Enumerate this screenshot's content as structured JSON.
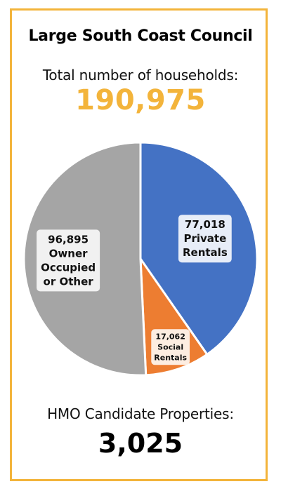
{
  "colors": {
    "frame": "#F3B43B",
    "total_value": "#F3B43B"
  },
  "title": "Large South Coast Council",
  "households": {
    "label": "Total number of households:",
    "value": "190,975"
  },
  "hmo": {
    "label": "HMO Candidate Properties:",
    "value": "3,025"
  },
  "chart_data": {
    "type": "pie",
    "total": 190975,
    "slices": [
      {
        "value": 77018,
        "value_label": "77,018",
        "name_lines": [
          "Private",
          "Rentals"
        ],
        "color": "#4472C4"
      },
      {
        "value": 17062,
        "value_label": "17,062",
        "name_lines": [
          "Social",
          "Rentals"
        ],
        "color": "#ED7D31"
      },
      {
        "value": 96895,
        "value_label": "96,895",
        "name_lines": [
          "Owner",
          "Occupied",
          "or Other"
        ],
        "color": "#A5A5A5"
      }
    ]
  }
}
